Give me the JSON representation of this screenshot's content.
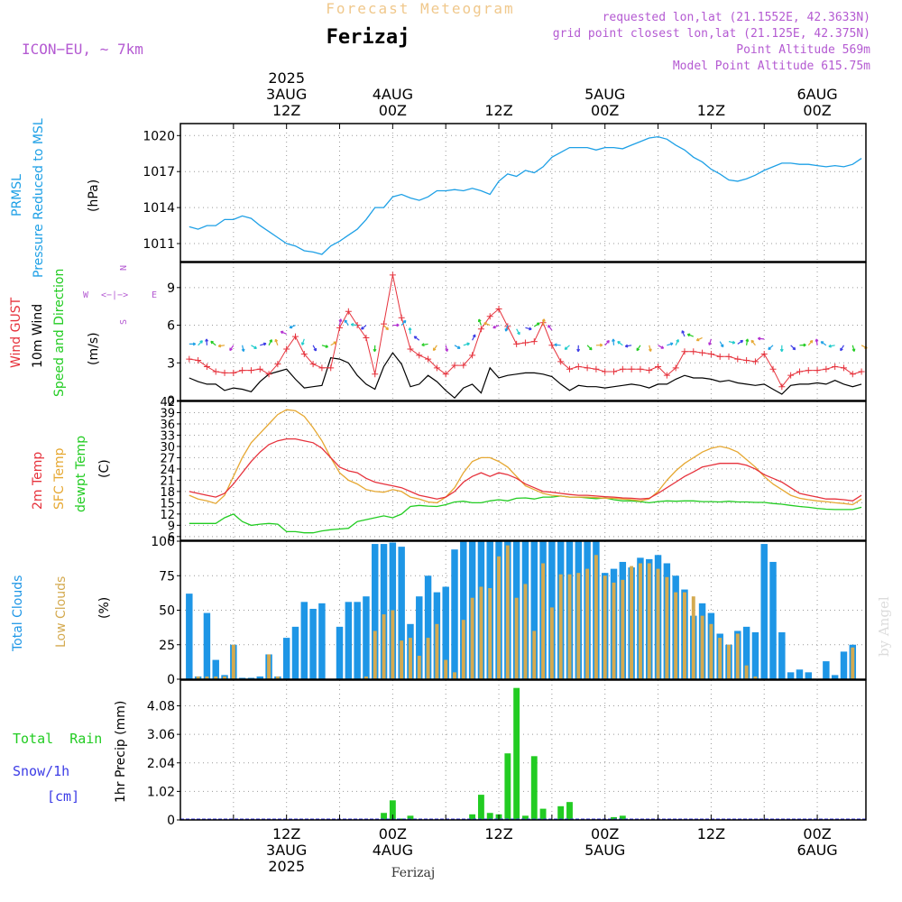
{
  "header": {
    "title": "Forecast Meteogram",
    "location": "Ferizaj",
    "model": "ICON−EU, ∼ 7km",
    "requested": "requested lon,lat (21.1552E, 42.3633N)",
    "grid_point": "grid point closest lon,lat (21.125E, 42.375N)",
    "point_altitude": "Point Altitude 569m",
    "model_altitude": "Model Point Altitude 615.75m",
    "footer_location": "Ferizaj",
    "credit": "by Angel"
  },
  "colors": {
    "pressure": "#1ea0e6",
    "gust": "#e6323c",
    "wind": "#000000",
    "wind_dir": "#22cc22",
    "temp2m": "#e6323c",
    "sfc": "#e6a832",
    "dewpt": "#22cc22",
    "total_clouds": "#1e96e6",
    "low_clouds": "#d4aa50",
    "rain": "#22cc22",
    "snow": "#3c3ce6",
    "purple": "#b45ad2",
    "title_orange": "#f0c88c"
  },
  "time_axis": {
    "top_labels": [
      {
        "t": 12,
        "lines": [
          "2025",
          "3AUG",
          "12Z"
        ]
      },
      {
        "t": 24,
        "lines": [
          "4AUG",
          "00Z"
        ]
      },
      {
        "t": 36,
        "lines": [
          "12Z"
        ]
      },
      {
        "t": 48,
        "lines": [
          "5AUG",
          "00Z"
        ]
      },
      {
        "t": 60,
        "lines": [
          "12Z"
        ]
      },
      {
        "t": 72,
        "lines": [
          "6AUG",
          "00Z"
        ]
      }
    ],
    "bottom_labels": [
      {
        "t": 12,
        "lines": [
          "12Z",
          "3AUG",
          "2025"
        ]
      },
      {
        "t": 24,
        "lines": [
          "00Z",
          "4AUG"
        ]
      },
      {
        "t": 36,
        "lines": [
          "12Z"
        ]
      },
      {
        "t": 48,
        "lines": [
          "00Z",
          "5AUG"
        ]
      },
      {
        "t": 60,
        "lines": [
          "12Z"
        ]
      },
      {
        "t": 72,
        "lines": [
          "00Z",
          "6AUG"
        ]
      }
    ]
  },
  "panel_labels": {
    "pressure": {
      "line1": "PRMSL",
      "line2": "Pressure Reduced to MSL",
      "unit": "(hPa)"
    },
    "wind": {
      "gust": "Wind GUST",
      "wind10": "10m Wind",
      "dir": "Speed and Direction",
      "unit": "(m/s)",
      "compass_n": "N",
      "compass_s": "S",
      "compass_w": "W",
      "compass_e": "E"
    },
    "temp": {
      "t2m": "2m Temp",
      "sfc": "SFC Temp",
      "dewpt": "dewpt Temp",
      "unit": "(C)"
    },
    "clouds": {
      "total": "Total Clouds",
      "low": "Low Clouds",
      "unit": "(%)"
    },
    "precip": {
      "rain": "Total  Rain",
      "snow": "Snow/1h",
      "snow_unit": "[cm]",
      "axis": "1hr Precip (mm)"
    }
  },
  "chart_data": [
    {
      "type": "line",
      "title": "PRMSL Pressure Reduced to MSL",
      "ylabel": "(hPa)",
      "x_unit": "hours from 3AUG 00Z",
      "ylim": [
        1009.5,
        1021.0
      ],
      "yticks": [
        1011,
        1014,
        1017,
        1020
      ],
      "x": [
        1,
        2,
        3,
        4,
        5,
        6,
        7,
        8,
        9,
        10,
        11,
        12,
        13,
        14,
        15,
        16,
        17,
        18,
        19,
        20,
        21,
        22,
        23,
        24,
        25,
        26,
        27,
        28,
        29,
        30,
        31,
        32,
        33,
        34,
        35,
        36,
        37,
        38,
        39,
        40,
        41,
        42,
        43,
        44,
        45,
        46,
        47,
        48,
        49,
        50,
        51,
        52,
        53,
        54,
        55,
        56,
        57,
        58,
        59,
        60,
        61,
        62,
        63,
        64,
        65,
        66,
        67,
        68,
        69,
        70,
        71,
        72,
        73,
        74,
        75,
        76,
        77
      ],
      "series": [
        {
          "values": [
            1012.4,
            1012.2,
            1012.5,
            1012.5,
            1013.0,
            1013.0,
            1013.3,
            1013.1,
            1012.5,
            1012.0,
            1011.5,
            1011.0,
            1010.8,
            1010.4,
            1010.3,
            1010.1,
            1010.8,
            1011.2,
            1011.7,
            1012.2,
            1013.0,
            1014.0,
            1014.0,
            1014.9,
            1015.1,
            1014.8,
            1014.6,
            1014.9,
            1015.4,
            1015.4,
            1015.5,
            1015.4,
            1015.6,
            1015.4,
            1015.1,
            1016.2,
            1016.8,
            1016.6,
            1017.1,
            1016.9,
            1017.4,
            1018.2,
            1018.6,
            1019.0,
            1019.0,
            1019.0,
            1018.8,
            1019.0,
            1019.0,
            1018.9,
            1019.2,
            1019.5,
            1019.8,
            1019.9,
            1019.7,
            1019.2,
            1018.8,
            1018.2,
            1017.8,
            1017.2,
            1016.8,
            1016.3,
            1016.2,
            1016.4,
            1016.7,
            1017.1,
            1017.4,
            1017.7,
            1017.7,
            1017.6,
            1017.6,
            1017.5,
            1017.4,
            1017.5,
            1017.4,
            1017.6,
            1018.1
          ]
        }
      ]
    },
    {
      "type": "line",
      "title": "Wind GUST / 10m Wind Speed and Direction",
      "ylabel": "(m/s)",
      "ylim": [
        0,
        11
      ],
      "yticks": [
        0,
        3,
        6,
        9
      ],
      "x": [
        1,
        2,
        3,
        4,
        5,
        6,
        7,
        8,
        9,
        10,
        11,
        12,
        13,
        14,
        15,
        16,
        17,
        18,
        19,
        20,
        21,
        22,
        23,
        24,
        25,
        26,
        27,
        28,
        29,
        30,
        31,
        32,
        33,
        34,
        35,
        36,
        37,
        38,
        39,
        40,
        41,
        42,
        43,
        44,
        45,
        46,
        47,
        48,
        49,
        50,
        51,
        52,
        53,
        54,
        55,
        56,
        57,
        58,
        59,
        60,
        61,
        62,
        63,
        64,
        65,
        66,
        67,
        68,
        69,
        70,
        71,
        72,
        73,
        74,
        75,
        76,
        77
      ],
      "series": [
        {
          "name": "Wind GUST",
          "values": [
            3.3,
            3.2,
            2.7,
            2.3,
            2.2,
            2.2,
            2.4,
            2.4,
            2.5,
            2.1,
            2.9,
            4.1,
            5.1,
            3.7,
            2.9,
            2.6,
            2.6,
            5.8,
            7.1,
            6.0,
            5.0,
            2.1,
            6.1,
            10.0,
            6.6,
            4.1,
            3.6,
            3.3,
            2.6,
            2.1,
            2.8,
            2.8,
            3.6,
            5.7,
            6.7,
            7.3,
            5.9,
            4.5,
            4.6,
            4.7,
            6.2,
            4.4,
            3.1,
            2.5,
            2.7,
            2.6,
            2.5,
            2.3,
            2.3,
            2.5,
            2.5,
            2.5,
            2.4,
            2.7,
            2.0,
            2.6,
            3.9,
            3.9,
            3.8,
            3.7,
            3.5,
            3.5,
            3.3,
            3.2,
            3.1,
            3.7,
            2.5,
            1.1,
            2.0,
            2.3,
            2.4,
            2.4,
            2.5,
            2.7,
            2.6,
            2.1,
            2.3
          ]
        },
        {
          "name": "10m Wind",
          "values": [
            1.8,
            1.5,
            1.3,
            1.3,
            0.8,
            1.0,
            0.9,
            0.7,
            1.5,
            2.1,
            2.3,
            2.5,
            1.7,
            1.0,
            1.1,
            1.2,
            3.4,
            3.3,
            3.0,
            2.0,
            1.3,
            0.9,
            2.7,
            3.8,
            2.9,
            1.1,
            1.3,
            2.0,
            1.5,
            0.8,
            0.2,
            1.0,
            1.3,
            0.6,
            2.6,
            1.8,
            2.0,
            2.1,
            2.2,
            2.2,
            2.1,
            1.9,
            1.3,
            0.8,
            1.2,
            1.1,
            1.1,
            1.0,
            1.1,
            1.2,
            1.3,
            1.2,
            1.0,
            1.3,
            1.3,
            1.7,
            2.0,
            1.8,
            1.8,
            1.7,
            1.5,
            1.6,
            1.4,
            1.3,
            1.2,
            1.3,
            0.9,
            0.5,
            1.2,
            1.3,
            1.3,
            1.4,
            1.3,
            1.6,
            1.3,
            1.1,
            1.3
          ]
        }
      ]
    },
    {
      "type": "line",
      "title": "2m Temp / SFC Temp / dewpt Temp",
      "ylabel": "(C)",
      "ylim": [
        5,
        42
      ],
      "yticks": [
        6,
        9,
        12,
        15,
        18,
        21,
        24,
        27,
        30,
        33,
        36,
        39,
        42
      ],
      "x": [
        1,
        2,
        3,
        4,
        5,
        6,
        7,
        8,
        9,
        10,
        11,
        12,
        13,
        14,
        15,
        16,
        17,
        18,
        19,
        20,
        21,
        22,
        23,
        24,
        25,
        26,
        27,
        28,
        29,
        30,
        31,
        32,
        33,
        34,
        35,
        36,
        37,
        38,
        39,
        40,
        41,
        42,
        43,
        44,
        45,
        46,
        47,
        48,
        49,
        50,
        51,
        52,
        53,
        54,
        55,
        56,
        57,
        58,
        59,
        60,
        61,
        62,
        63,
        64,
        65,
        66,
        67,
        68,
        69,
        70,
        71,
        72,
        73,
        74,
        75,
        76,
        77
      ],
      "series": [
        {
          "name": "2m Temp",
          "values": [
            18,
            17.5,
            17,
            16.5,
            17.5,
            20,
            23,
            26,
            28.5,
            30.5,
            31.5,
            32,
            32,
            31.5,
            31,
            29.5,
            27,
            24.5,
            23.5,
            23,
            21.5,
            20.5,
            20,
            19.5,
            19,
            18,
            17,
            16.5,
            16,
            16.5,
            18,
            20.5,
            22,
            23,
            22,
            23,
            22.5,
            21.5,
            20,
            19,
            18,
            17.8,
            17.5,
            17.2,
            17,
            17,
            16.8,
            16.6,
            16.5,
            16.3,
            16.2,
            16,
            16.2,
            17.5,
            19,
            20.5,
            22,
            23.2,
            24.5,
            25,
            25.5,
            25.5,
            25.5,
            25,
            24,
            22.5,
            21.5,
            20.5,
            19,
            17.5,
            17,
            16.5,
            16,
            16,
            15.8,
            15.5,
            17
          ]
        },
        {
          "name": "SFC Temp",
          "values": [
            17,
            16,
            15.5,
            14.8,
            17,
            22,
            27,
            31,
            33.5,
            36,
            38.5,
            39.8,
            39.5,
            38,
            35,
            31.5,
            27,
            23,
            21,
            20,
            18.5,
            18,
            17.8,
            18.5,
            18,
            16.5,
            16,
            15.2,
            15,
            16.5,
            19,
            23,
            26,
            27,
            27,
            26,
            24.5,
            22,
            19.5,
            18.5,
            17.5,
            17,
            16.8,
            16.5,
            16.5,
            16.5,
            16.4,
            16.2,
            16.2,
            16,
            15.8,
            15.5,
            16,
            18,
            21,
            23.5,
            25.5,
            27,
            28.5,
            29.5,
            30,
            29.5,
            28.5,
            26.5,
            24.5,
            22,
            20,
            18.5,
            17,
            16.2,
            15.8,
            15.5,
            15.3,
            15,
            14.8,
            14.5,
            16
          ]
        },
        {
          "name": "dewpt Temp",
          "values": [
            9.5,
            9.5,
            9.5,
            9.5,
            11,
            12,
            10,
            9,
            9.3,
            9.5,
            9.3,
            7.3,
            7.3,
            7,
            7,
            7.5,
            7.8,
            8,
            8.2,
            10,
            10.5,
            11,
            11.5,
            11,
            12,
            14,
            14.3,
            14.1,
            14,
            14.5,
            15.2,
            15.4,
            15,
            15,
            15.5,
            15.8,
            15.5,
            16.2,
            16.3,
            16,
            16.5,
            16.5,
            16.8,
            16.5,
            16.5,
            16.3,
            16.1,
            16.3,
            15.8,
            15.5,
            15.5,
            15.3,
            15,
            15.3,
            15.5,
            15.4,
            15.5,
            15.5,
            15.3,
            15.3,
            15.2,
            15.4,
            15.2,
            15.2,
            15.1,
            15.1,
            14.8,
            14.6,
            14.3,
            14,
            13.8,
            13.5,
            13.3,
            13.2,
            13.2,
            13.2,
            13.8
          ]
        }
      ]
    },
    {
      "type": "bar",
      "title": "Total Clouds / Low Clouds",
      "ylabel": "(%)",
      "ylim": [
        0,
        100
      ],
      "yticks": [
        0,
        25,
        50,
        75,
        100
      ],
      "x": [
        1,
        2,
        3,
        4,
        5,
        6,
        7,
        8,
        9,
        10,
        11,
        12,
        13,
        14,
        15,
        16,
        17,
        18,
        19,
        20,
        21,
        22,
        23,
        24,
        25,
        26,
        27,
        28,
        29,
        30,
        31,
        32,
        33,
        34,
        35,
        36,
        37,
        38,
        39,
        40,
        41,
        42,
        43,
        44,
        45,
        46,
        47,
        48,
        49,
        50,
        51,
        52,
        53,
        54,
        55,
        56,
        57,
        58,
        59,
        60,
        61,
        62,
        63,
        64,
        65,
        66,
        67,
        68,
        69,
        70,
        71,
        72,
        73,
        74,
        75,
        76,
        77
      ],
      "series": [
        {
          "name": "Total Clouds",
          "values": [
            62,
            2,
            48,
            14,
            3,
            25,
            1,
            1,
            2,
            18,
            2,
            30,
            38,
            56,
            51,
            55,
            0,
            38,
            56,
            56,
            60,
            98,
            98,
            99,
            96,
            40,
            60,
            75,
            63,
            67,
            94,
            100,
            100,
            100,
            100,
            100,
            100,
            100,
            100,
            100,
            100,
            100,
            100,
            100,
            100,
            100,
            100,
            77,
            80,
            85,
            81,
            88,
            87,
            90,
            84,
            75,
            65,
            46,
            55,
            48,
            33,
            25,
            35,
            38,
            34,
            98,
            85,
            34,
            5,
            7,
            5,
            0,
            13,
            3,
            20,
            25,
            0
          ]
        },
        {
          "name": "Low Clouds",
          "values": [
            0,
            2,
            2,
            2,
            2,
            25,
            0,
            0,
            0,
            18,
            2,
            0,
            0,
            0,
            0,
            0,
            0,
            0,
            0,
            0,
            2,
            35,
            47,
            50,
            28,
            30,
            17,
            30,
            40,
            14,
            5,
            43,
            59,
            67,
            66,
            89,
            97,
            59,
            69,
            35,
            84,
            52,
            76,
            76,
            77,
            80,
            90,
            75,
            70,
            72,
            82,
            84,
            84,
            80,
            74,
            63,
            63,
            60,
            46,
            40,
            30,
            25,
            33,
            10,
            2,
            0,
            0,
            0,
            0,
            0,
            0,
            0,
            0,
            0,
            0,
            23,
            0
          ]
        }
      ]
    },
    {
      "type": "bar",
      "title": "1hr Precip",
      "ylabel": "1hr Precip (mm)",
      "ylim": [
        0,
        5.0
      ],
      "yticks": [
        0,
        1.02,
        2.04,
        3.06,
        4.08
      ],
      "x": [
        23,
        24,
        25,
        26,
        33,
        34,
        35,
        36,
        37,
        38,
        39,
        40,
        41,
        43,
        44,
        49,
        50
      ],
      "series": [
        {
          "name": "Total Rain",
          "values": [
            0.25,
            0.7,
            0.05,
            0.15,
            0.2,
            0.9,
            0.25,
            0.2,
            2.38,
            4.72,
            0.15,
            2.28,
            0.4,
            0.49,
            0.64,
            0.1,
            0.15
          ]
        }
      ]
    }
  ]
}
